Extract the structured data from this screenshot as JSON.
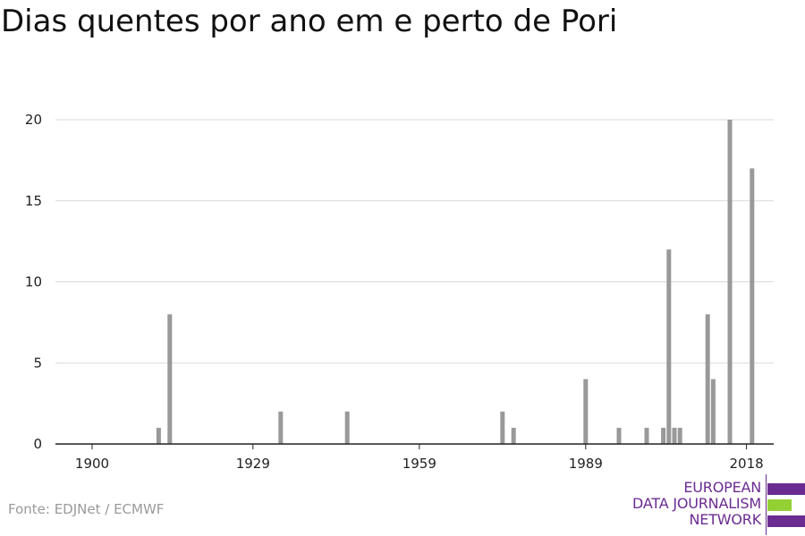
{
  "title": "Dias quentes por ano em e perto de Pori",
  "source": "Fonte: EDJNet / ECMWF",
  "logo": {
    "lines": [
      "EUROPEAN",
      "DATA JOURNALISM",
      "NETWORK"
    ]
  },
  "colors": {
    "bar": "#999999",
    "grid": "#d9d9d9",
    "axis": "#222222",
    "logo_purple": "#6b2c91",
    "logo_green": "#94d034"
  },
  "chart_data": {
    "type": "bar",
    "title": "Dias quentes por ano em e perto de Pori",
    "xlabel": "",
    "ylabel": "",
    "xlim": [
      1900,
      2020
    ],
    "ylim": [
      0,
      20
    ],
    "x_ticks": [
      1900,
      1929,
      1959,
      1989,
      2018
    ],
    "y_ticks": [
      0,
      5,
      10,
      15,
      20
    ],
    "grid": true,
    "x": [
      1912,
      1914,
      1934,
      1946,
      1974,
      1976,
      1989,
      1995,
      2000,
      2003,
      2004,
      2005,
      2006,
      2011,
      2012,
      2015,
      2019
    ],
    "values": [
      1,
      8,
      2,
      2,
      2,
      1,
      4,
      1,
      1,
      1,
      12,
      1,
      1,
      8,
      4,
      20,
      17
    ]
  }
}
